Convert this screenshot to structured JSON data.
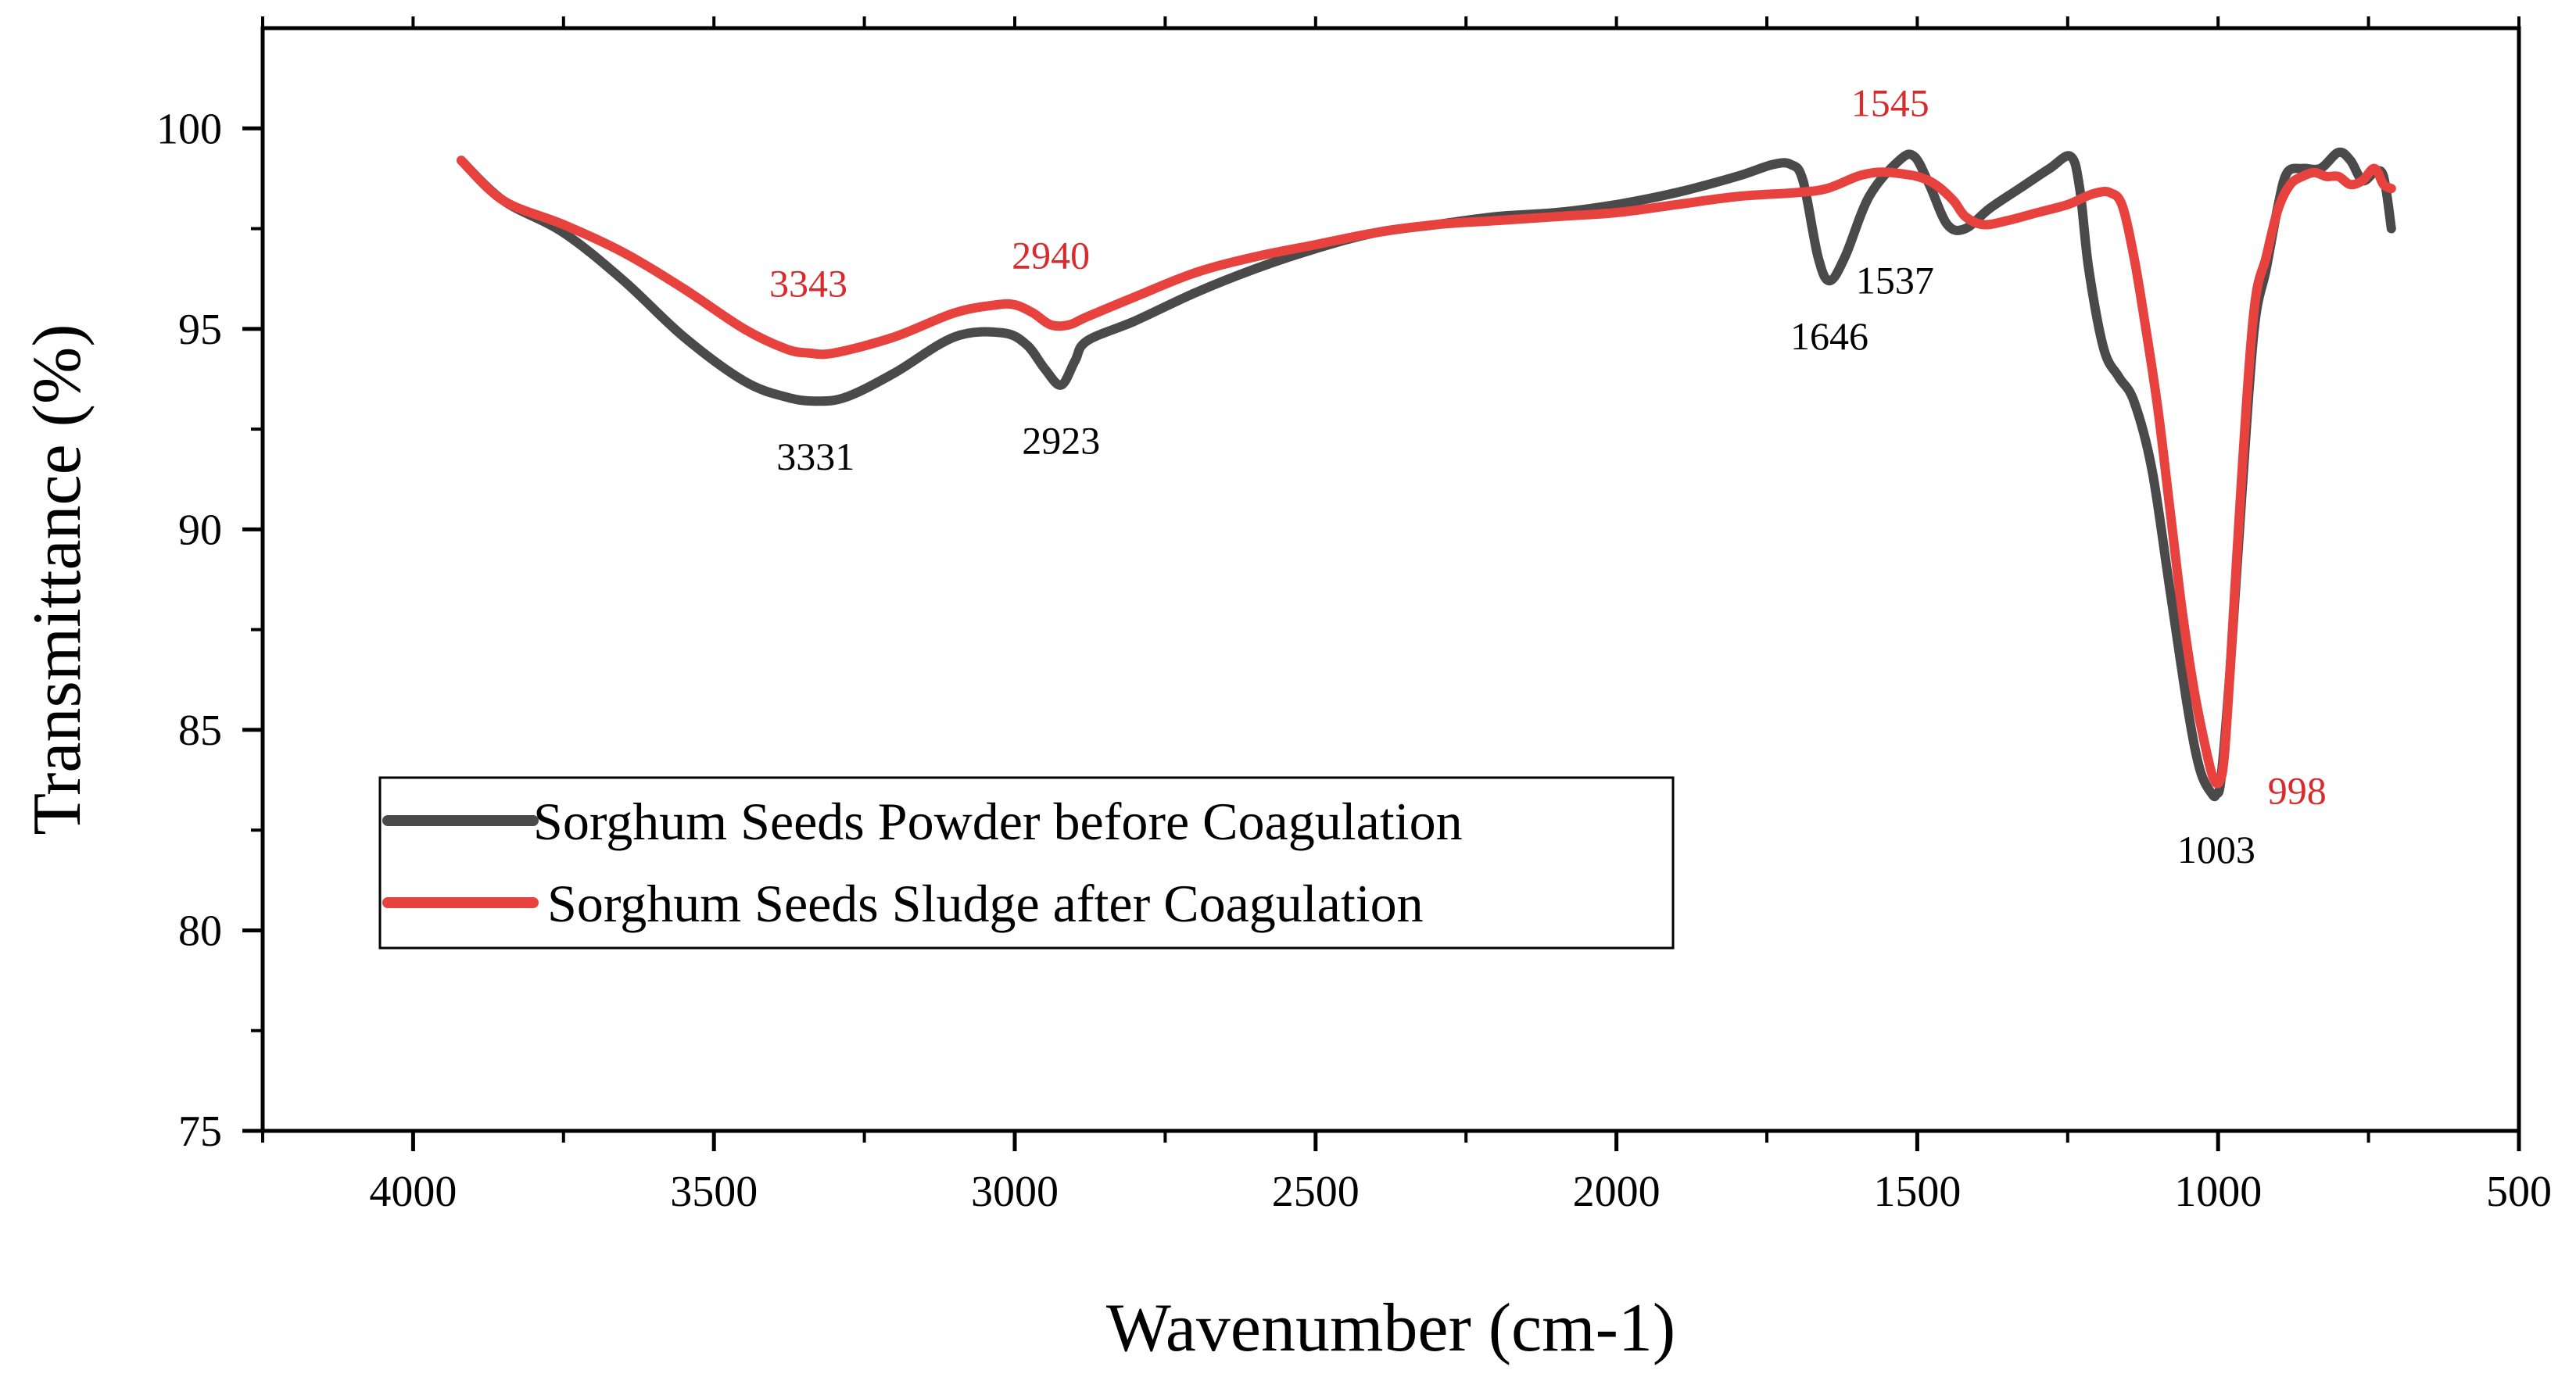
{
  "chart_data": {
    "type": "line",
    "title": "",
    "xlabel": "Wavenumber (cm-1)",
    "ylabel": "Transmittance (%)",
    "xlim": [
      4250,
      500
    ],
    "ylim": [
      75,
      102.5
    ],
    "x_reversed": true,
    "grid": false,
    "x_ticks": [
      4000,
      3500,
      3000,
      2500,
      2000,
      1500,
      1000,
      500
    ],
    "x_tick_labels": [
      "4000",
      "3500",
      "3000",
      "2500",
      "2000",
      "1500",
      "1000",
      "500"
    ],
    "y_ticks": [
      75,
      80,
      85,
      90,
      95,
      100
    ],
    "y_tick_labels": [
      "75",
      "80",
      "85",
      "90",
      "95",
      "100"
    ],
    "legend": "lower-left",
    "colors": {
      "Sorghum Seeds Powder before Coagulation": "#4a4a4a",
      "Sorghum Seeds Sludge after Coagulation": "#e8423f",
      "black_label": "#000000",
      "red_label": "#d92b2b"
    },
    "series": [
      {
        "name": "Sorghum Seeds Powder before Coagulation",
        "color": "#4a4a4a",
        "x": [
          3920,
          3850,
          3750,
          3650,
          3550,
          3450,
          3380,
          3331,
          3280,
          3200,
          3100,
          3020,
          2980,
          2950,
          2923,
          2900,
          2880,
          2800,
          2700,
          2600,
          2500,
          2400,
          2300,
          2200,
          2100,
          2000,
          1900,
          1800,
          1740,
          1710,
          1690,
          1665,
          1646,
          1620,
          1580,
          1530,
          1505,
          1480,
          1450,
          1420,
          1380,
          1330,
          1280,
          1245,
          1230,
          1215,
          1190,
          1165,
          1140,
          1110,
          1080,
          1050,
          1030,
          1010,
          1003,
          995,
          980,
          960,
          940,
          920,
          900,
          885,
          860,
          830,
          800,
          780,
          760,
          740,
          725,
          712
        ],
        "y": [
          99.2,
          98.2,
          97.4,
          96.2,
          94.8,
          93.7,
          93.3,
          93.2,
          93.3,
          93.9,
          94.8,
          94.9,
          94.6,
          94.0,
          93.6,
          94.2,
          94.7,
          95.2,
          95.9,
          96.5,
          97.0,
          97.4,
          97.6,
          97.8,
          97.9,
          98.1,
          98.4,
          98.8,
          99.1,
          99.1,
          98.7,
          96.8,
          96.2,
          96.8,
          98.3,
          99.2,
          99.3,
          98.6,
          97.6,
          97.5,
          98.0,
          98.5,
          99.0,
          99.3,
          98.5,
          96.5,
          94.5,
          93.8,
          93.2,
          91.5,
          88.5,
          85.5,
          84.0,
          83.4,
          83.4,
          83.8,
          86.5,
          91.0,
          95.0,
          96.5,
          98.1,
          98.9,
          99.0,
          99.0,
          99.4,
          99.2,
          98.7,
          98.9,
          98.8,
          97.5
        ]
      },
      {
        "name": "Sorghum Seeds Sludge after Coagulation",
        "color": "#e8423f",
        "x": [
          3920,
          3850,
          3750,
          3650,
          3550,
          3450,
          3380,
          3343,
          3300,
          3200,
          3100,
          3030,
          3000,
          2970,
          2940,
          2910,
          2880,
          2800,
          2700,
          2600,
          2500,
          2400,
          2300,
          2200,
          2100,
          2000,
          1900,
          1800,
          1700,
          1650,
          1600,
          1570,
          1545,
          1500,
          1470,
          1440,
          1420,
          1390,
          1350,
          1300,
          1250,
          1220,
          1200,
          1180,
          1160,
          1140,
          1120,
          1100,
          1080,
          1060,
          1040,
          1020,
          1008,
          998,
          990,
          980,
          960,
          940,
          920,
          900,
          880,
          860,
          840,
          820,
          800,
          780,
          760,
          740,
          725,
          712
        ],
        "y": [
          99.2,
          98.2,
          97.6,
          96.9,
          96.0,
          95.0,
          94.5,
          94.4,
          94.4,
          94.8,
          95.4,
          95.6,
          95.6,
          95.4,
          95.1,
          95.1,
          95.3,
          95.8,
          96.4,
          96.8,
          97.1,
          97.4,
          97.6,
          97.7,
          97.8,
          97.9,
          98.1,
          98.3,
          98.4,
          98.5,
          98.8,
          98.9,
          98.9,
          98.8,
          98.6,
          98.2,
          97.8,
          97.6,
          97.7,
          97.9,
          98.1,
          98.3,
          98.4,
          98.4,
          98.1,
          96.8,
          95.0,
          93.0,
          90.5,
          88.0,
          86.0,
          84.5,
          83.8,
          83.7,
          84.3,
          86.5,
          91.5,
          95.5,
          96.8,
          98.0,
          98.6,
          98.8,
          98.9,
          98.8,
          98.8,
          98.6,
          98.7,
          99.0,
          98.6,
          98.5
        ]
      }
    ],
    "annotations": [
      {
        "text": "3331",
        "x": 3331,
        "y": 93.2,
        "series": "Sorghum Seeds Powder before Coagulation",
        "position": "below"
      },
      {
        "text": "2923",
        "x": 2923,
        "y": 93.6,
        "series": "Sorghum Seeds Powder before Coagulation",
        "position": "below"
      },
      {
        "text": "1646",
        "x": 1646,
        "y": 96.2,
        "series": "Sorghum Seeds Powder before Coagulation",
        "position": "below"
      },
      {
        "text": "1537",
        "x": 1537,
        "y": 97.6,
        "series": "Sorghum Seeds Powder before Coagulation",
        "position": "below"
      },
      {
        "text": "1003",
        "x": 1003,
        "y": 83.4,
        "series": "Sorghum Seeds Powder before Coagulation",
        "position": "below"
      },
      {
        "text": "3343",
        "x": 3343,
        "y": 94.4,
        "series": "Sorghum Seeds Sludge after Coagulation",
        "position": "above"
      },
      {
        "text": "2940",
        "x": 2940,
        "y": 95.1,
        "series": "Sorghum Seeds Sludge after Coagulation",
        "position": "above"
      },
      {
        "text": "1545",
        "x": 1545,
        "y": 98.9,
        "series": "Sorghum Seeds Sludge after Coagulation",
        "position": "above"
      },
      {
        "text": "998",
        "x": 998,
        "y": 83.7,
        "series": "Sorghum Seeds Sludge after Coagulation",
        "position": "right"
      }
    ]
  }
}
